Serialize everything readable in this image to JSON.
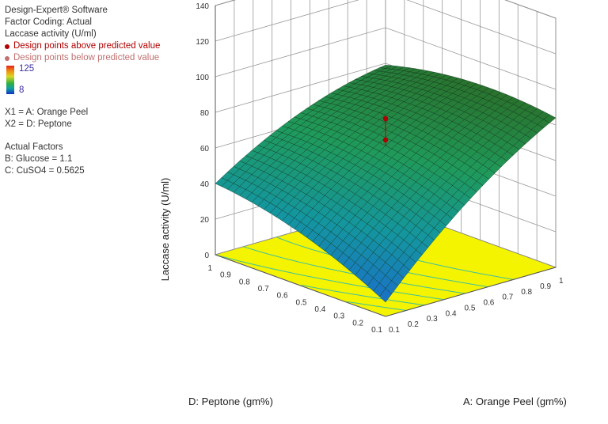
{
  "legend": {
    "software": "Design-Expert® Software",
    "coding": "Factor Coding: Actual",
    "response": "Laccase activity (U/ml)",
    "above_label": "Design points above predicted value",
    "below_label": "Design points below predicted value",
    "scale_max": "125",
    "scale_min": "8",
    "x1": "X1 = A: Orange Peel",
    "x2": "X2 = D: Peptone",
    "actual_factors_heading": "Actual Factors",
    "factor_b": "B: Glucose = 1.1",
    "factor_c": "C: CuSO4 = 0.5625"
  },
  "colors": {
    "above_point": "#b00000",
    "below_point": "#c07070",
    "floor": "#f4f400",
    "contour": "#40c0a0",
    "surface_low": "#1a70c8",
    "surface_mid": "#1f9a5a",
    "surface_high": "#2a5a20"
  },
  "chart_data": {
    "type": "surface",
    "zlabel": "Laccase activity (U/ml)",
    "xlabel": "A: Orange Peel (gm%)",
    "ylabel": "D: Peptone (gm%)",
    "z_ticks": [
      "0",
      "20",
      "40",
      "60",
      "80",
      "100",
      "120",
      "140"
    ],
    "x_ticks": [
      "0.1",
      "0.2",
      "0.3",
      "0.4",
      "0.5",
      "0.6",
      "0.7",
      "0.8",
      "0.9",
      "1"
    ],
    "y_ticks": [
      "0.1",
      "0.2",
      "0.3",
      "0.4",
      "0.5",
      "0.6",
      "0.7",
      "0.8",
      "0.9",
      "1"
    ],
    "xlim": [
      0.1,
      1
    ],
    "ylim": [
      0.1,
      1
    ],
    "zlim": [
      0,
      140
    ],
    "surface_corners": [
      {
        "x": 0.1,
        "y": 0.1,
        "z": 8
      },
      {
        "x": 1,
        "y": 0.1,
        "z": 84
      },
      {
        "x": 0.1,
        "y": 1,
        "z": 40
      },
      {
        "x": 1,
        "y": 1,
        "z": 79
      }
    ],
    "design_points": [
      {
        "x": 0.55,
        "y": 0.55,
        "z": 68,
        "position": "above"
      },
      {
        "x": 0.55,
        "y": 0.55,
        "z": 80,
        "position": "above"
      }
    ]
  }
}
